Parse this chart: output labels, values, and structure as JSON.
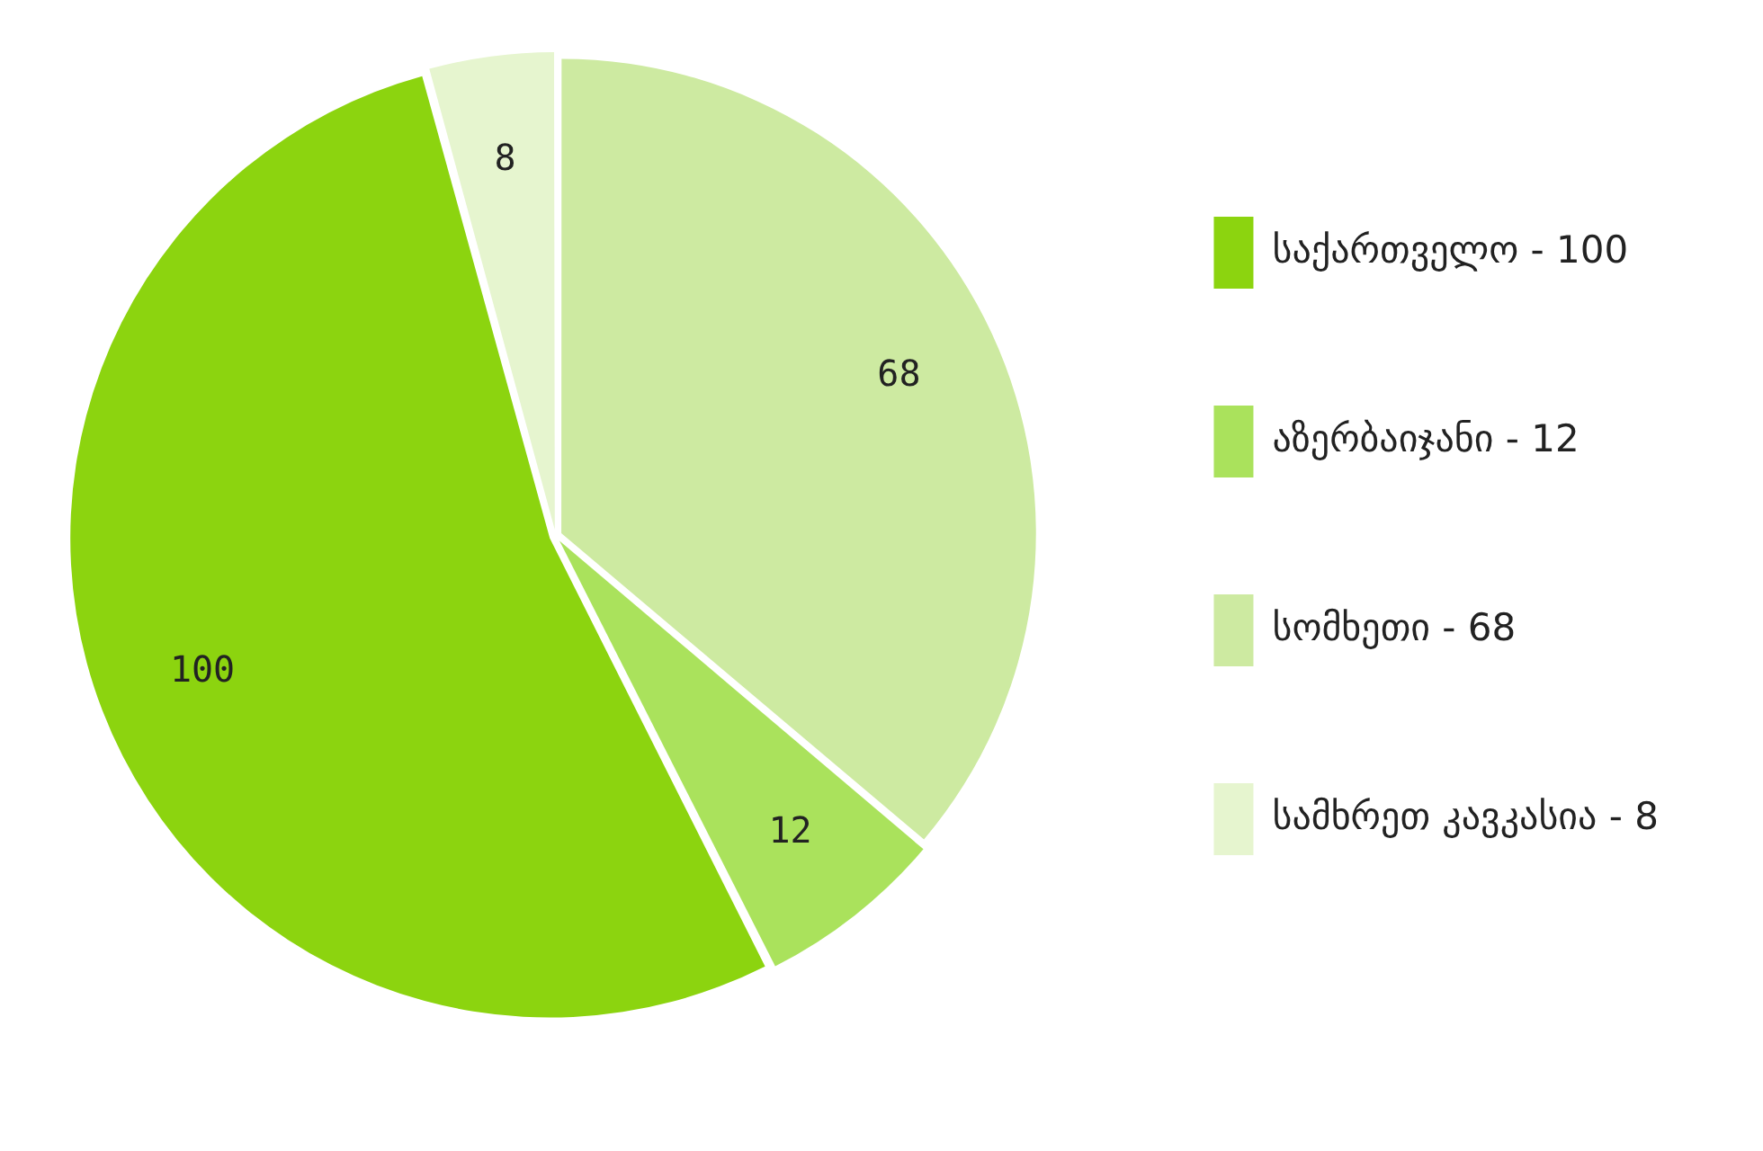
{
  "chart_data": {
    "type": "pie",
    "categories": [
      "საქართველო - 100",
      "აზერბაიჯანი - 12",
      "სომხეთი - 68",
      "სამხრეთ კავკასია - 8"
    ],
    "values": [
      100,
      12,
      68,
      8
    ],
    "colors": [
      "#8cd40f",
      "#aae25c",
      "#cdeaa1",
      "#e6f5cf"
    ],
    "data_labels": true,
    "legend": "right"
  }
}
